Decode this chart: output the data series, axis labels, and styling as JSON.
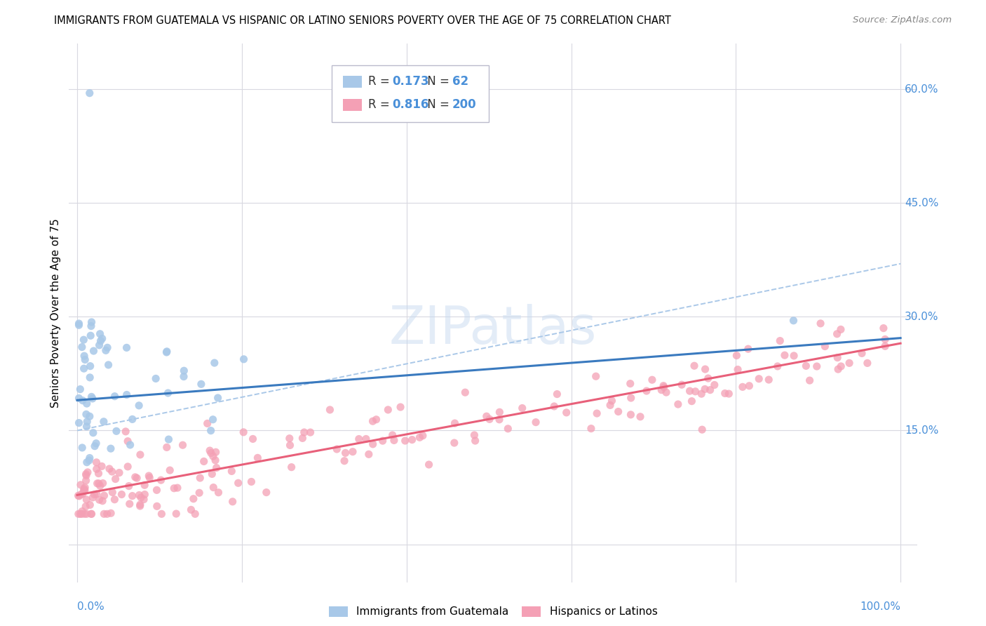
{
  "title": "IMMIGRANTS FROM GUATEMALA VS HISPANIC OR LATINO SENIORS POVERTY OVER THE AGE OF 75 CORRELATION CHART",
  "source": "Source: ZipAtlas.com",
  "ylabel": "Seniors Poverty Over the Age of 75",
  "watermark": "ZIPatlas",
  "color_blue": "#a8c8e8",
  "color_pink": "#f4a0b5",
  "color_blue_line": "#3a7abf",
  "color_pink_line": "#e8607a",
  "color_dashed": "#aac8e8",
  "color_axis_label": "#4a90d9",
  "legend_label1": "Immigrants from Guatemala",
  "legend_label2": "Hispanics or Latinos",
  "ylim_min": -0.05,
  "ylim_max": 0.66,
  "xlim_min": -0.01,
  "xlim_max": 1.02,
  "blue_regression": [
    0.19,
    0.082
  ],
  "pink_regression": [
    0.065,
    0.2
  ],
  "dashed_regression": [
    0.15,
    0.22
  ]
}
